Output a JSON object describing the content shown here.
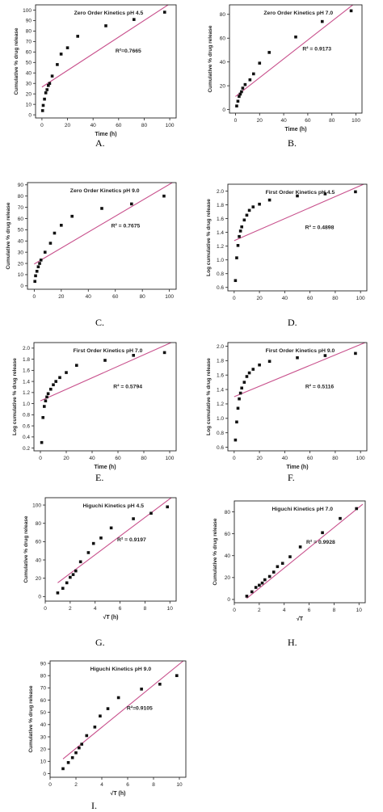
{
  "chart_data": [
    {
      "type": "scatter",
      "title": "Zero Order Kinetics pH 4.5",
      "xlabel": "Time (h)",
      "ylabel": "Cumulative % drug release",
      "xlim": [
        -5,
        105
      ],
      "ylim": [
        -3,
        105
      ],
      "xticks": [
        0,
        20,
        40,
        60,
        80,
        100
      ],
      "yticks": [
        0,
        10,
        20,
        30,
        40,
        50,
        60,
        70,
        80,
        90,
        100
      ],
      "x": [
        0.5,
        1,
        2,
        3,
        4,
        5,
        6,
        8,
        12,
        15,
        20,
        28,
        50,
        72,
        96
      ],
      "y": [
        4,
        9,
        15,
        21,
        24,
        28,
        30,
        37,
        48,
        58,
        64,
        75,
        85,
        91,
        98
      ],
      "fit": {
        "x": [
          0,
          105
        ],
        "y": [
          26.5,
          110
        ]
      },
      "annotation": "R²=0.7665",
      "caption": "A."
    },
    {
      "type": "scatter",
      "title": "Zero Order Kinetics pH 7.0",
      "xlabel": "Time (h)",
      "ylabel": "Cumulative % drug release",
      "xlim": [
        -5,
        105
      ],
      "ylim": [
        -3,
        88
      ],
      "xticks": [
        0,
        20,
        40,
        60,
        80,
        100
      ],
      "yticks": [
        0,
        20,
        40,
        60,
        80
      ],
      "x": [
        1,
        2,
        3,
        4,
        5,
        6,
        8,
        12,
        15,
        20,
        28,
        50,
        72,
        96
      ],
      "y": [
        3,
        7,
        11,
        13,
        15,
        18,
        21,
        25,
        30,
        39,
        48,
        61,
        74,
        83
      ],
      "fit": {
        "x": [
          0,
          105
        ],
        "y": [
          11,
          94
        ]
      },
      "annotation": "R² = 0.9173",
      "caption": "B."
    },
    {
      "type": "scatter",
      "title": "Zero Order Kinetics pH 9.0",
      "xlabel": "",
      "ylabel": "Cumulative % drug release",
      "xlim": [
        -5,
        105
      ],
      "ylim": [
        -3,
        92
      ],
      "xticks": [
        0,
        20,
        40,
        60,
        80,
        100
      ],
      "yticks": [
        0,
        10,
        20,
        30,
        40,
        50,
        60,
        70,
        80,
        90
      ],
      "x": [
        0.5,
        1,
        2,
        3,
        4,
        5,
        8,
        12,
        15,
        20,
        28,
        50,
        72,
        96
      ],
      "y": [
        4,
        9,
        13,
        17,
        20,
        23,
        30,
        38,
        47,
        54,
        62,
        69,
        73,
        80
      ],
      "fit": {
        "x": [
          0,
          105
        ],
        "y": [
          19.5,
          94
        ]
      },
      "annotation": "R² = 0.7675",
      "caption": "C."
    },
    {
      "type": "scatter",
      "title": "First Order Kinetics pH 4.5",
      "xlabel": "",
      "ylabel": "Log cumulative % drug release",
      "xlim": [
        -5,
        105
      ],
      "ylim": [
        0.55,
        2.1
      ],
      "xticks": [
        0,
        20,
        40,
        60,
        80,
        100
      ],
      "yticks": [
        0.6,
        0.8,
        1.0,
        1.2,
        1.4,
        1.6,
        1.8,
        2.0
      ],
      "yformat": 1,
      "x": [
        1,
        2,
        3,
        4,
        5,
        6,
        8,
        10,
        12,
        15,
        20,
        28,
        50,
        72,
        96
      ],
      "y": [
        0.7,
        1.03,
        1.21,
        1.34,
        1.42,
        1.48,
        1.58,
        1.65,
        1.72,
        1.77,
        1.81,
        1.87,
        1.93,
        1.96,
        1.99
      ],
      "fit": {
        "x": [
          0,
          105
        ],
        "y": [
          1.28,
          2.12
        ]
      },
      "annotation": "R² = 0.4898",
      "caption": "D."
    },
    {
      "type": "scatter",
      "title": "First Order Kinetics pH 7.0",
      "xlabel": "Time (h)",
      "ylabel": "Log cumulative % drug release",
      "xlim": [
        -5,
        105
      ],
      "ylim": [
        0.15,
        2.1
      ],
      "xticks": [
        0,
        20,
        40,
        60,
        80,
        100
      ],
      "yticks": [
        0.2,
        0.4,
        0.6,
        0.8,
        1.0,
        1.2,
        1.4,
        1.6,
        1.8,
        2.0
      ],
      "yformat": 1,
      "x": [
        1,
        2,
        3,
        4,
        5,
        6,
        8,
        10,
        12,
        15,
        20,
        28,
        50,
        72,
        96
      ],
      "y": [
        0.3,
        0.75,
        0.95,
        1.05,
        1.12,
        1.18,
        1.26,
        1.34,
        1.4,
        1.47,
        1.56,
        1.69,
        1.78,
        1.87,
        1.92
      ],
      "fit": {
        "x": [
          0,
          105
        ],
        "y": [
          1.05,
          2.14
        ]
      },
      "annotation": "R² = 0.5794",
      "caption": "E."
    },
    {
      "type": "scatter",
      "title": "First Order Kinetics pH 9.0",
      "xlabel": "Time (h)",
      "ylabel": "Log cumulative % drug release",
      "xlim": [
        -5,
        105
      ],
      "ylim": [
        0.55,
        2.05
      ],
      "xticks": [
        0,
        20,
        40,
        60,
        80,
        100
      ],
      "yticks": [
        0.6,
        0.8,
        1.0,
        1.2,
        1.4,
        1.6,
        1.8,
        2.0
      ],
      "yformat": 1,
      "x": [
        1,
        2,
        3,
        4,
        5,
        6,
        8,
        10,
        12,
        15,
        20,
        28,
        50,
        72,
        96
      ],
      "y": [
        0.7,
        0.95,
        1.14,
        1.27,
        1.35,
        1.42,
        1.5,
        1.58,
        1.63,
        1.68,
        1.74,
        1.79,
        1.84,
        1.87,
        1.9
      ],
      "fit": {
        "x": [
          0,
          105
        ],
        "y": [
          1.3,
          2.06
        ]
      },
      "annotation": "R² = 0.5116",
      "caption": "F."
    },
    {
      "type": "scatter",
      "title": "Higuchi Kinetics pH 4.5",
      "xlabel": "√T (h)",
      "ylabel": "Cumulative % drug release",
      "xlim": [
        0,
        10.5
      ],
      "ylim": [
        -5,
        108
      ],
      "xticks": [
        0,
        2,
        4,
        6,
        8,
        10
      ],
      "yticks": [
        0,
        20,
        40,
        60,
        80,
        100
      ],
      "x": [
        1,
        1.41,
        1.73,
        2,
        2.24,
        2.45,
        2.83,
        3.46,
        3.87,
        4.47,
        5.29,
        7.07,
        8.49,
        9.8
      ],
      "y": [
        4,
        9,
        15,
        21,
        24,
        28,
        38,
        48,
        58,
        64,
        75,
        85,
        91,
        98
      ],
      "fit": {
        "x": [
          1,
          10.5
        ],
        "y": [
          15,
          112
        ]
      },
      "annotation": "R² = 0.9197",
      "caption": "G."
    },
    {
      "type": "scatter",
      "title": "Higuchi Kinetics pH 7.0",
      "xlabel": "√T",
      "ylabel": "Cumulative % drug release",
      "xlim": [
        0,
        10.5
      ],
      "ylim": [
        -3,
        90
      ],
      "xticks": [
        0,
        2,
        4,
        6,
        8,
        10
      ],
      "yticks": [
        0,
        20,
        40,
        60,
        80
      ],
      "x": [
        1,
        1.41,
        1.73,
        2,
        2.24,
        2.45,
        2.83,
        3.16,
        3.46,
        3.87,
        4.47,
        5.29,
        7.07,
        8.49,
        9.8
      ],
      "y": [
        3,
        7,
        11,
        13,
        15,
        18,
        21,
        25,
        30,
        33,
        39,
        48,
        61,
        74,
        83
      ],
      "fit": {
        "x": [
          1,
          10.3
        ],
        "y": [
          1,
          87
        ]
      },
      "annotation": "R² = 0.9928",
      "caption": "H."
    },
    {
      "type": "scatter",
      "title": "Higuchi Kinetics pH 9.0",
      "xlabel": "√T (h)",
      "ylabel": "Cumulative % drug release",
      "xlim": [
        0,
        10.5
      ],
      "ylim": [
        -3,
        92
      ],
      "xticks": [
        0,
        2,
        4,
        6,
        8,
        10
      ],
      "yticks": [
        0,
        10,
        20,
        30,
        40,
        50,
        60,
        70,
        80,
        90
      ],
      "x": [
        1,
        1.41,
        1.73,
        2,
        2.24,
        2.45,
        2.83,
        3.46,
        3.87,
        4.47,
        5.29,
        7.07,
        8.49,
        9.8
      ],
      "y": [
        4,
        9,
        13,
        17,
        21,
        24,
        31,
        38,
        47,
        53,
        62,
        69,
        73,
        80
      ],
      "fit": {
        "x": [
          1,
          10.3
        ],
        "y": [
          12,
          92
        ]
      },
      "annotation": "R²=0.9105",
      "caption": "I."
    }
  ]
}
